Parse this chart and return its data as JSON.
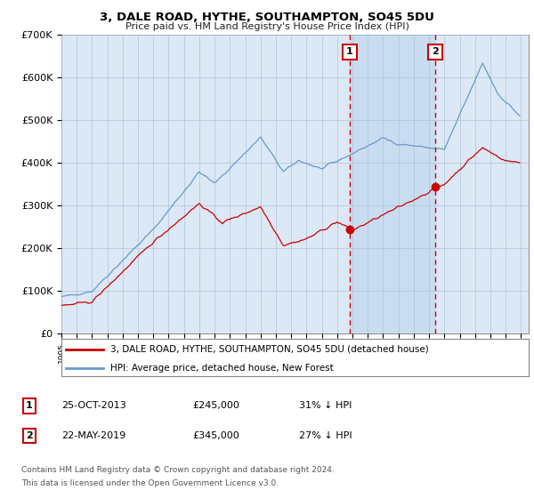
{
  "title": "3, DALE ROAD, HYTHE, SOUTHAMPTON, SO45 5DU",
  "subtitle": "Price paid vs. HM Land Registry's House Price Index (HPI)",
  "ylim": [
    0,
    700000
  ],
  "yticks": [
    0,
    100000,
    200000,
    300000,
    400000,
    500000,
    600000,
    700000
  ],
  "ytick_labels": [
    "£0",
    "£100K",
    "£200K",
    "£300K",
    "£400K",
    "£500K",
    "£600K",
    "£700K"
  ],
  "plot_bg_color": "#dce8f5",
  "shade_color": "#c8ddf0",
  "grid_color": "#b0c4d8",
  "hpi_color": "#6699cc",
  "price_color": "#cc0000",
  "vline_color": "#cc0000",
  "marker1_year": 2013.82,
  "marker2_year": 2019.39,
  "transaction1_price": 245000,
  "transaction2_price": 345000,
  "legend_line1": "3, DALE ROAD, HYTHE, SOUTHAMPTON, SO45 5DU (detached house)",
  "legend_line2": "HPI: Average price, detached house, New Forest",
  "footnote1": "Contains HM Land Registry data © Crown copyright and database right 2024.",
  "footnote2": "This data is licensed under the Open Government Licence v3.0.",
  "table_rows": [
    {
      "num": "1",
      "date": "25-OCT-2013",
      "price": "£245,000",
      "pct": "31% ↓ HPI"
    },
    {
      "num": "2",
      "date": "22-MAY-2019",
      "price": "£345,000",
      "pct": "27% ↓ HPI"
    }
  ]
}
